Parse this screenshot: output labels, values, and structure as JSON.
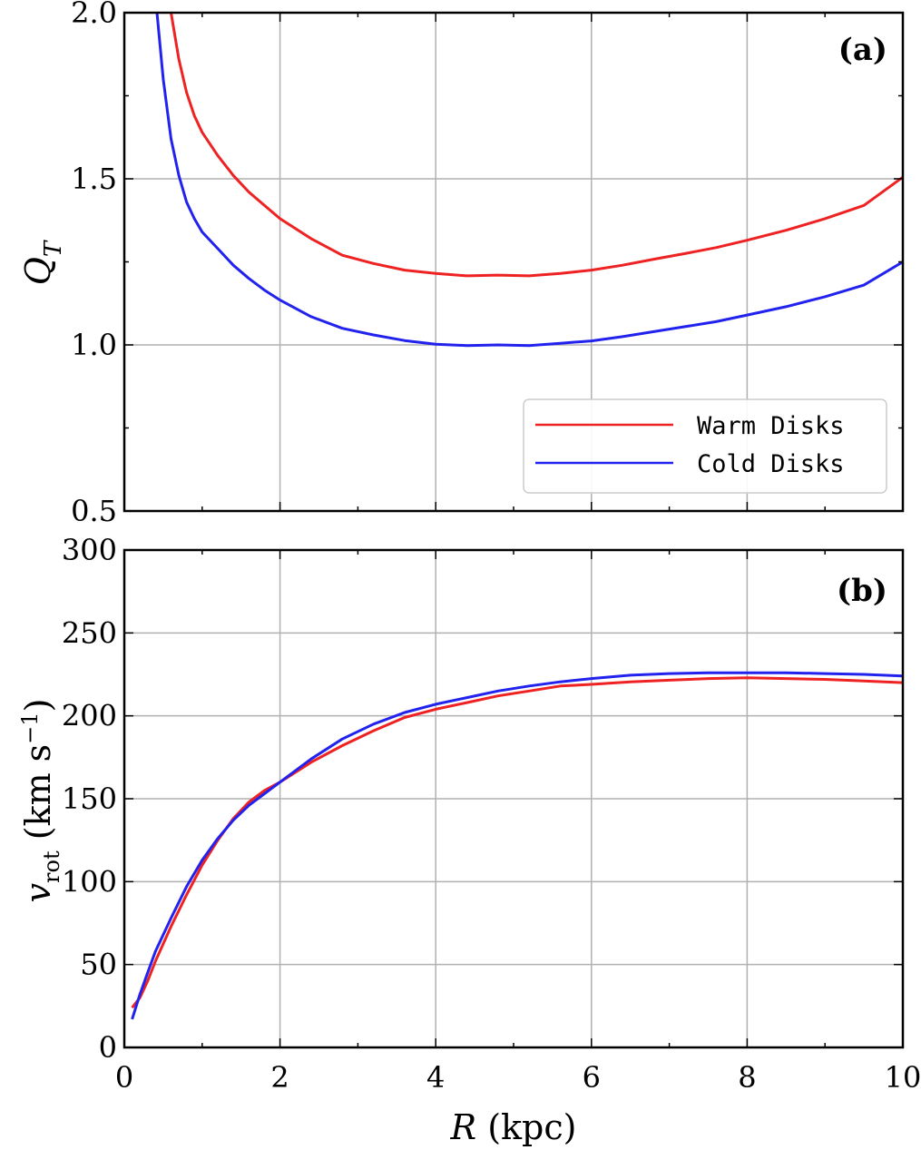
{
  "chart_data": [
    {
      "panel": "(a)",
      "type": "line",
      "title": "",
      "xlabel": "",
      "ylabel": "Q_T",
      "xlim": [
        0,
        10
      ],
      "ylim": [
        0.5,
        2.0
      ],
      "x_ticks": [
        "0",
        "2",
        "4",
        "6",
        "8",
        "10"
      ],
      "y_ticks": [
        "0.5",
        "1.0",
        "1.5",
        "2.0"
      ],
      "y_tick_values": [
        0.5,
        1.0,
        1.5,
        2.0
      ],
      "grid": true,
      "legend": {
        "placement": "lower-right",
        "entries": [
          "Warm Disks",
          "Cold Disks"
        ]
      },
      "series": [
        {
          "name": "Warm Disks",
          "color": "#ee2222",
          "x": [
            0.6,
            0.7,
            0.8,
            0.9,
            1.0,
            1.2,
            1.4,
            1.6,
            1.8,
            2.0,
            2.4,
            2.8,
            3.2,
            3.6,
            4.0,
            4.4,
            4.8,
            5.2,
            5.6,
            6.0,
            6.4,
            6.8,
            7.2,
            7.6,
            8.0,
            8.5,
            9.0,
            9.5,
            10.0
          ],
          "y": [
            2.0,
            1.86,
            1.76,
            1.69,
            1.64,
            1.57,
            1.51,
            1.46,
            1.42,
            1.38,
            1.32,
            1.27,
            1.245,
            1.225,
            1.215,
            1.208,
            1.21,
            1.208,
            1.215,
            1.225,
            1.24,
            1.258,
            1.275,
            1.293,
            1.315,
            1.345,
            1.38,
            1.42,
            1.505
          ]
        },
        {
          "name": "Cold Disks",
          "color": "#2222ee",
          "x": [
            0.42,
            0.5,
            0.6,
            0.7,
            0.8,
            0.9,
            1.0,
            1.2,
            1.4,
            1.6,
            1.8,
            2.0,
            2.4,
            2.8,
            3.2,
            3.6,
            4.0,
            4.4,
            4.8,
            5.2,
            5.6,
            6.0,
            6.4,
            6.8,
            7.2,
            7.6,
            8.0,
            8.5,
            9.0,
            9.5,
            10.0
          ],
          "y": [
            2.0,
            1.8,
            1.62,
            1.51,
            1.43,
            1.38,
            1.34,
            1.29,
            1.24,
            1.2,
            1.165,
            1.135,
            1.085,
            1.05,
            1.03,
            1.013,
            1.002,
            0.998,
            1.0,
            0.998,
            1.005,
            1.012,
            1.025,
            1.04,
            1.055,
            1.07,
            1.09,
            1.115,
            1.145,
            1.18,
            1.25
          ]
        }
      ]
    },
    {
      "panel": "(b)",
      "type": "line",
      "title": "",
      "xlabel": "R (kpc)",
      "ylabel": "v_rot (km s^-1)",
      "xlim": [
        0,
        10
      ],
      "ylim": [
        0,
        300
      ],
      "x_ticks": [
        "0",
        "2",
        "4",
        "6",
        "8",
        "10"
      ],
      "x_tick_values": [
        0,
        2,
        4,
        6,
        8,
        10
      ],
      "y_ticks": [
        "0",
        "50",
        "100",
        "150",
        "200",
        "250",
        "300"
      ],
      "y_tick_values": [
        0,
        50,
        100,
        150,
        200,
        250,
        300
      ],
      "grid": true,
      "series": [
        {
          "name": "Warm Disks",
          "color": "#ee2222",
          "x": [
            0.1,
            0.2,
            0.3,
            0.4,
            0.6,
            0.8,
            1.0,
            1.2,
            1.4,
            1.6,
            1.8,
            2.0,
            2.4,
            2.8,
            3.2,
            3.6,
            4.0,
            4.4,
            4.8,
            5.2,
            5.6,
            6.0,
            6.5,
            7.0,
            7.5,
            8.0,
            8.5,
            9.0,
            9.5,
            10.0
          ],
          "y": [
            24,
            30,
            40,
            52,
            73,
            92,
            110,
            125,
            138,
            148,
            155,
            160,
            172,
            182,
            191,
            199,
            204,
            208,
            212,
            215,
            218,
            219,
            220.5,
            221.5,
            222.5,
            223,
            222.5,
            222,
            221,
            220
          ]
        },
        {
          "name": "Cold Disks",
          "color": "#2222ee",
          "x": [
            0.1,
            0.2,
            0.3,
            0.4,
            0.6,
            0.8,
            1.0,
            1.2,
            1.4,
            1.6,
            1.8,
            2.0,
            2.4,
            2.8,
            3.2,
            3.6,
            4.0,
            4.4,
            4.8,
            5.2,
            5.6,
            6.0,
            6.5,
            7.0,
            7.5,
            8.0,
            8.5,
            9.0,
            9.5,
            10.0
          ],
          "y": [
            17,
            32,
            45,
            58,
            78,
            97,
            113,
            126,
            137,
            146,
            153,
            160,
            174,
            186,
            195,
            202,
            207,
            211,
            215,
            218,
            220.5,
            222.5,
            224.5,
            225.5,
            226,
            226,
            226,
            225.5,
            225,
            224
          ]
        }
      ]
    }
  ]
}
